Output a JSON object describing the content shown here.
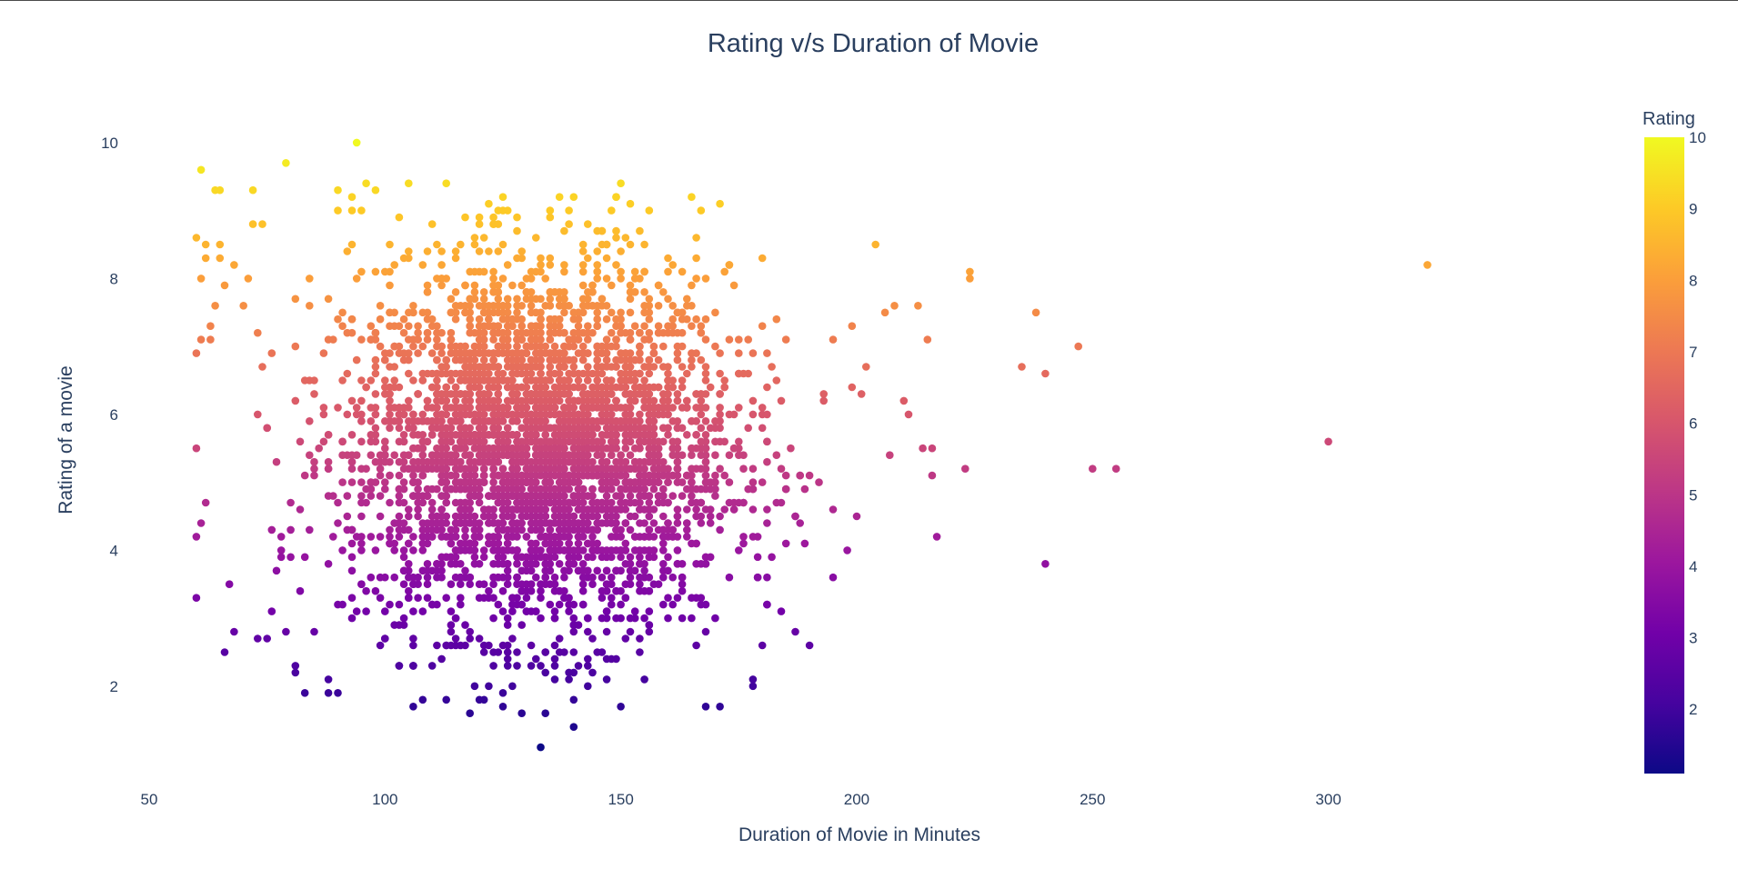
{
  "chart_data": {
    "type": "scatter",
    "title": "Rating v/s Duration of Movie",
    "xlabel": "Duration of Movie in Minutes",
    "ylabel": "Rating of a movie",
    "xlim": [
      50,
      345
    ],
    "ylim": [
      0.7,
      10.4
    ],
    "x_ticks": [
      50,
      100,
      150,
      200,
      250,
      300
    ],
    "y_ticks": [
      2,
      4,
      6,
      8,
      10
    ],
    "colorbar": {
      "title": "Rating",
      "range": [
        1.1,
        10
      ],
      "ticks": [
        2,
        3,
        4,
        5,
        6,
        7,
        8,
        9,
        10
      ],
      "colorscale": [
        "#0d0887",
        "#46039f",
        "#7201a8",
        "#9c179e",
        "#bd3786",
        "#d8576b",
        "#ed7953",
        "#fb9f3a",
        "#fdca26",
        "#f0f921"
      ]
    },
    "marker_color": "rating",
    "cluster": {
      "x_center": 133,
      "x_spread": 20,
      "y_center": 5.5,
      "y_spread": 1.35,
      "x_min": 60,
      "x_max": 195,
      "y_min": 1.6,
      "y_max": 9.4
    },
    "points": [
      [
        94,
        10.0
      ],
      [
        61,
        9.6
      ],
      [
        79,
        9.7
      ],
      [
        64,
        9.3
      ],
      [
        65,
        9.3
      ],
      [
        72,
        9.3
      ],
      [
        113,
        9.4
      ],
      [
        105,
        9.4
      ],
      [
        96,
        9.4
      ],
      [
        90,
        9.3
      ],
      [
        93,
        9.2
      ],
      [
        98,
        9.3
      ],
      [
        140,
        9.2
      ],
      [
        152,
        9.1
      ],
      [
        122,
        9.1
      ],
      [
        171,
        9.1
      ],
      [
        90,
        9.0
      ],
      [
        93,
        9.0
      ],
      [
        95,
        9.0
      ],
      [
        167,
        9.0
      ],
      [
        148,
        9.0
      ],
      [
        117,
        8.9
      ],
      [
        128,
        8.9
      ],
      [
        135,
        8.9
      ],
      [
        72,
        8.8
      ],
      [
        74,
        8.8
      ],
      [
        143,
        8.8
      ],
      [
        60,
        8.6
      ],
      [
        62,
        8.5
      ],
      [
        65,
        8.5
      ],
      [
        204,
        8.5
      ],
      [
        224,
        8.1
      ],
      [
        224,
        8.0
      ],
      [
        321,
        8.2
      ],
      [
        238,
        7.5
      ],
      [
        206,
        7.5
      ],
      [
        208,
        7.6
      ],
      [
        213,
        7.6
      ],
      [
        247,
        7.0
      ],
      [
        215,
        7.1
      ],
      [
        199,
        7.3
      ],
      [
        195,
        7.1
      ],
      [
        235,
        6.7
      ],
      [
        240,
        6.6
      ],
      [
        202,
        6.7
      ],
      [
        199,
        6.4
      ],
      [
        201,
        6.3
      ],
      [
        210,
        6.2
      ],
      [
        211,
        6.0
      ],
      [
        193,
        6.2
      ],
      [
        300,
        5.6
      ],
      [
        250,
        5.2
      ],
      [
        255,
        5.2
      ],
      [
        223,
        5.2
      ],
      [
        214,
        5.5
      ],
      [
        216,
        5.5
      ],
      [
        216,
        5.1
      ],
      [
        207,
        5.4
      ],
      [
        217,
        4.2
      ],
      [
        200,
        4.5
      ],
      [
        195,
        4.6
      ],
      [
        198,
        4.0
      ],
      [
        240,
        3.8
      ],
      [
        195,
        3.6
      ],
      [
        184,
        3.1
      ],
      [
        180,
        2.6
      ],
      [
        133,
        1.1
      ],
      [
        140,
        1.4
      ],
      [
        134,
        1.6
      ],
      [
        118,
        1.6
      ],
      [
        150,
        1.7
      ],
      [
        168,
        1.7
      ],
      [
        171,
        1.7
      ],
      [
        108,
        1.8
      ],
      [
        113,
        1.8
      ],
      [
        83,
        1.9
      ],
      [
        90,
        1.9
      ],
      [
        81,
        2.2
      ],
      [
        81,
        2.3
      ],
      [
        60,
        3.3
      ],
      [
        66,
        2.5
      ],
      [
        73,
        2.7
      ],
      [
        75,
        2.7
      ],
      [
        68,
        2.8
      ],
      [
        79,
        2.8
      ],
      [
        60,
        4.2
      ],
      [
        61,
        4.4
      ],
      [
        62,
        4.7
      ],
      [
        60,
        5.5
      ],
      [
        60,
        6.9
      ],
      [
        61,
        7.1
      ],
      [
        63,
        7.3
      ],
      [
        61,
        8.0
      ],
      [
        62,
        8.3
      ],
      [
        64,
        7.6
      ],
      [
        66,
        7.9
      ],
      [
        70,
        7.6
      ],
      [
        68,
        8.2
      ],
      [
        71,
        8.0
      ]
    ]
  }
}
